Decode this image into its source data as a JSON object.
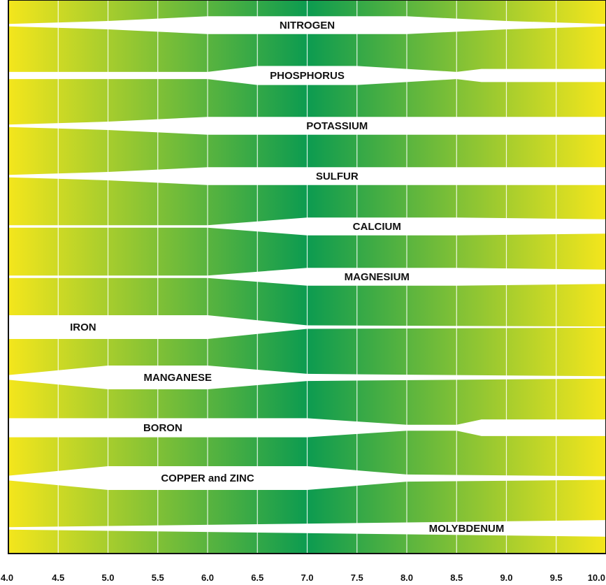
{
  "chart_data": {
    "type": "band-chart",
    "title": "",
    "xlabel": "",
    "ylabel": "",
    "xlim": [
      4.0,
      10.0
    ],
    "gradient_colors": {
      "acid_end": "#f4e61c",
      "mid": "#0c9b50",
      "alkaline_end": "#f4e61c"
    },
    "x_ticks": [
      "4.0",
      "4.5",
      "5.0",
      "5.5",
      "6.0",
      "6.5",
      "7.0",
      "7.5",
      "8.0",
      "8.5",
      "9.0",
      "9.5",
      "10.0"
    ],
    "nutrients": [
      {
        "name": "NITROGEN",
        "label_x": 7.0,
        "profile": [
          [
            4.0,
            0.1
          ],
          [
            5.0,
            0.35
          ],
          [
            6.0,
            0.75
          ],
          [
            8.0,
            0.75
          ],
          [
            9.0,
            0.35
          ],
          [
            10.0,
            0.1
          ]
        ]
      },
      {
        "name": "PHOSPHORUS",
        "label_x": 7.0,
        "profile": [
          [
            4.0,
            0.3
          ],
          [
            6.0,
            0.3
          ],
          [
            6.5,
            0.8
          ],
          [
            7.5,
            0.8
          ],
          [
            8.5,
            0.3
          ],
          [
            8.75,
            0.55
          ],
          [
            10.0,
            0.55
          ]
        ]
      },
      {
        "name": "POTASSIUM",
        "label_x": 7.3,
        "profile": [
          [
            4.0,
            0.1
          ],
          [
            5.0,
            0.35
          ],
          [
            6.0,
            0.75
          ],
          [
            10.0,
            0.75
          ]
        ]
      },
      {
        "name": "SULFUR",
        "label_x": 7.3,
        "profile": [
          [
            4.0,
            0.1
          ],
          [
            5.0,
            0.35
          ],
          [
            6.0,
            0.75
          ],
          [
            10.0,
            0.75
          ]
        ]
      },
      {
        "name": "CALCIUM",
        "label_x": 7.7,
        "profile": [
          [
            4.0,
            0.1
          ],
          [
            6.0,
            0.1
          ],
          [
            7.0,
            0.75
          ],
          [
            8.5,
            0.75
          ],
          [
            10.0,
            0.6
          ]
        ]
      },
      {
        "name": "MAGNESIUM",
        "label_x": 7.7,
        "profile": [
          [
            4.0,
            0.1
          ],
          [
            6.0,
            0.1
          ],
          [
            7.0,
            0.75
          ],
          [
            8.5,
            0.75
          ],
          [
            10.0,
            0.6
          ]
        ]
      },
      {
        "name": "IRON",
        "label_x": 4.75,
        "profile": [
          [
            4.0,
            1.0
          ],
          [
            6.0,
            1.0
          ],
          [
            7.0,
            0.15
          ],
          [
            10.0,
            0.05
          ]
        ]
      },
      {
        "name": "MANGANESE",
        "label_x": 5.7,
        "profile": [
          [
            4.0,
            0.2
          ],
          [
            5.0,
            1.0
          ],
          [
            6.0,
            1.0
          ],
          [
            7.0,
            0.3
          ],
          [
            10.0,
            0.1
          ]
        ]
      },
      {
        "name": "BORON",
        "label_x": 5.55,
        "profile": [
          [
            4.0,
            0.8
          ],
          [
            7.0,
            0.8
          ],
          [
            8.0,
            0.25
          ],
          [
            8.5,
            0.25
          ],
          [
            8.75,
            0.7
          ],
          [
            10.0,
            0.7
          ]
        ]
      },
      {
        "name": "COPPER and ZINC",
        "label_x": 6.0,
        "profile": [
          [
            4.0,
            0.2
          ],
          [
            5.0,
            1.0
          ],
          [
            7.0,
            1.0
          ],
          [
            8.0,
            0.3
          ],
          [
            10.0,
            0.15
          ]
        ]
      },
      {
        "name": "MOLYBDENUM",
        "label_x": 8.6,
        "profile": [
          [
            4.0,
            0.1
          ],
          [
            10.0,
            0.7
          ]
        ]
      }
    ]
  }
}
